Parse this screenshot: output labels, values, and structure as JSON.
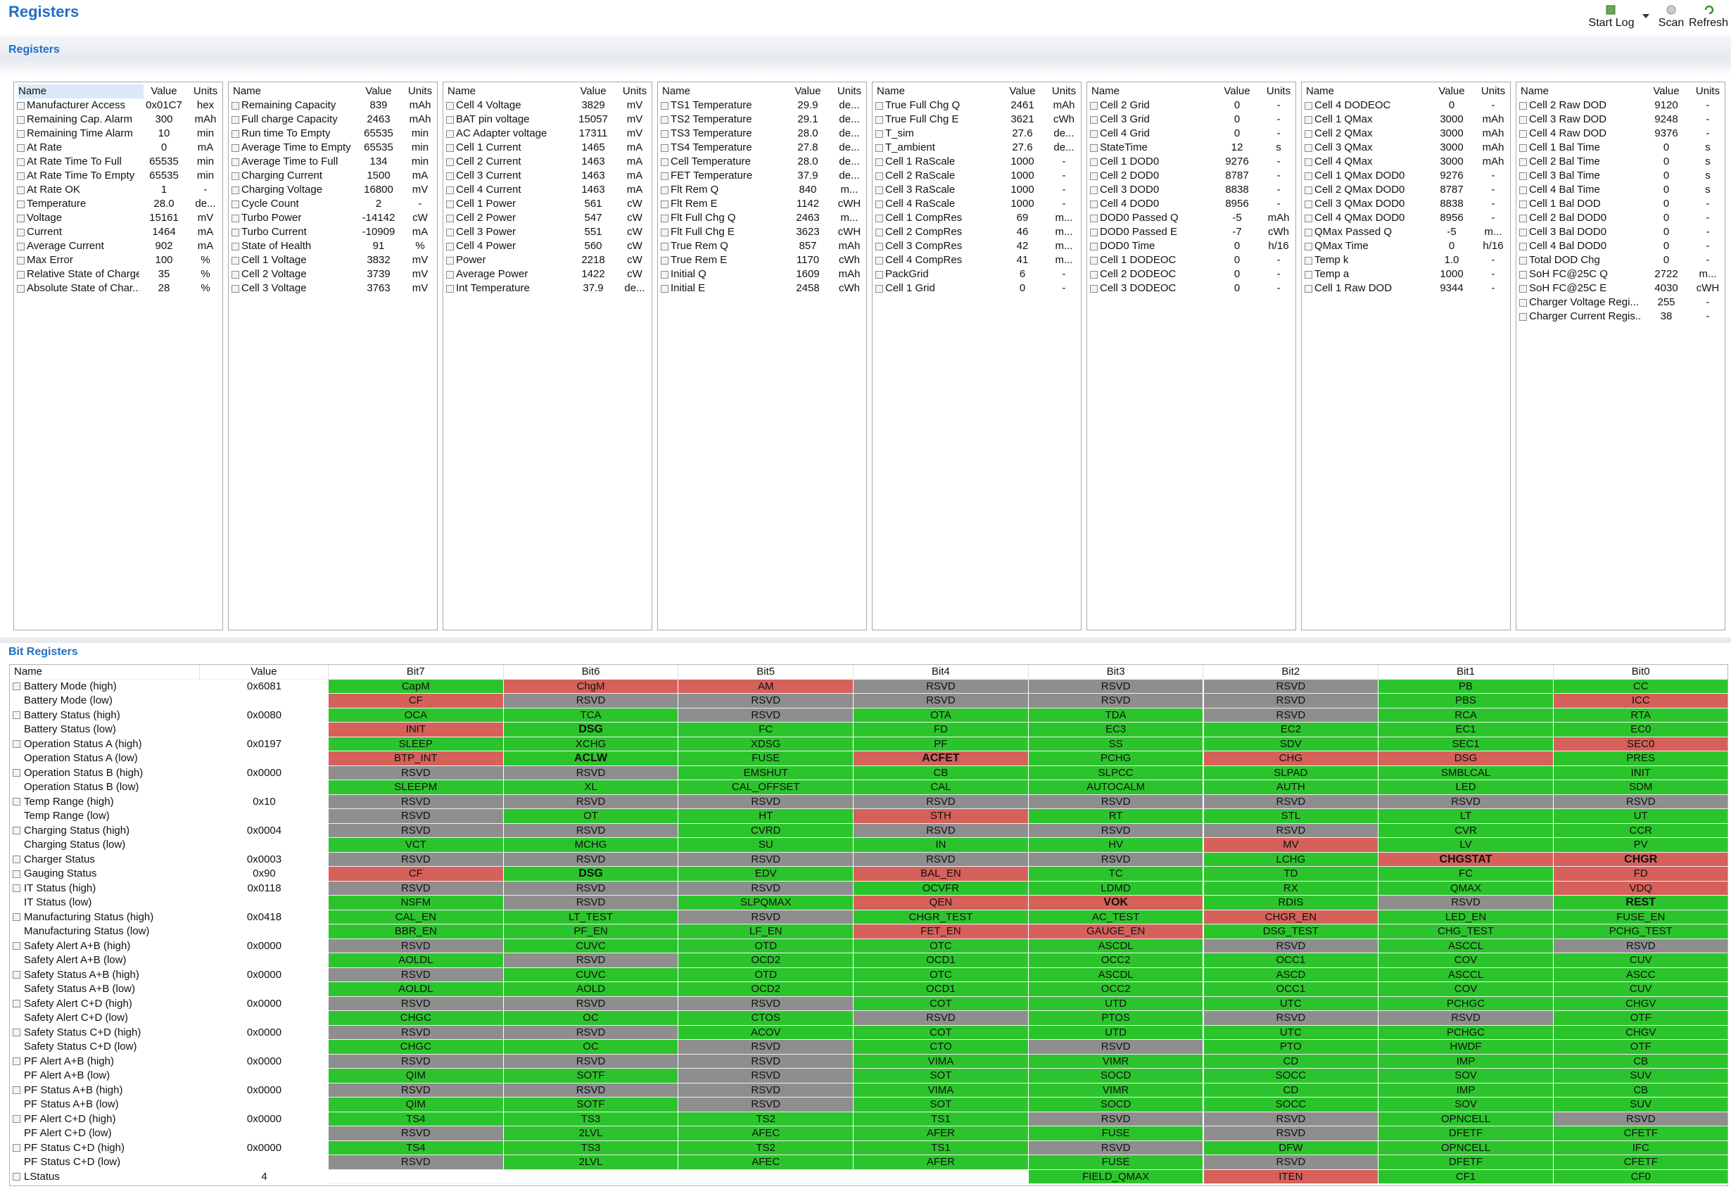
{
  "header": {
    "title": "Registers",
    "toolbar": [
      "Start Log",
      "Scan",
      "Refresh"
    ]
  },
  "registers": {
    "title": "Registers",
    "columns": [
      "Name",
      "Value",
      "Units"
    ],
    "panels": [
      [
        [
          "Manufacturer Access",
          "0x01C7",
          "hex"
        ],
        [
          "Remaining Cap. Alarm",
          "300",
          "mAh"
        ],
        [
          "Remaining Time Alarm",
          "10",
          "min"
        ],
        [
          "At Rate",
          "0",
          "mA"
        ],
        [
          "At Rate Time To Full",
          "65535",
          "min"
        ],
        [
          "At Rate Time To Empty",
          "65535",
          "min"
        ],
        [
          "At Rate OK",
          "1",
          "-"
        ],
        [
          "Temperature",
          "28.0",
          "de..."
        ],
        [
          "Voltage",
          "15161",
          "mV"
        ],
        [
          "Current",
          "1464",
          "mA"
        ],
        [
          "Average Current",
          "902",
          "mA"
        ],
        [
          "Max Error",
          "100",
          "%"
        ],
        [
          "Relative State of Charge",
          "35",
          "%"
        ],
        [
          "Absolute State of Char...",
          "28",
          "%"
        ]
      ],
      [
        [
          "Remaining Capacity",
          "839",
          "mAh"
        ],
        [
          "Full charge Capacity",
          "2463",
          "mAh"
        ],
        [
          "Run time To Empty",
          "65535",
          "min"
        ],
        [
          "Average Time to Empty",
          "65535",
          "min"
        ],
        [
          "Average Time to Full",
          "134",
          "min"
        ],
        [
          "Charging Current",
          "1500",
          "mA"
        ],
        [
          "Charging Voltage",
          "16800",
          "mV"
        ],
        [
          "Cycle Count",
          "2",
          "-"
        ],
        [
          "Turbo Power",
          "-14142",
          "cW"
        ],
        [
          "Turbo Current",
          "-10909",
          "mA"
        ],
        [
          "State of Health",
          "91",
          "%"
        ],
        [
          "Cell 1 Voltage",
          "3832",
          "mV"
        ],
        [
          "Cell 2 Voltage",
          "3739",
          "mV"
        ],
        [
          "Cell 3 Voltage",
          "3763",
          "mV"
        ]
      ],
      [
        [
          "Cell 4 Voltage",
          "3829",
          "mV"
        ],
        [
          "BAT pin voltage",
          "15057",
          "mV"
        ],
        [
          "AC Adapter voltage",
          "17311",
          "mV"
        ],
        [
          "Cell 1 Current",
          "1465",
          "mA"
        ],
        [
          "Cell 2 Current",
          "1463",
          "mA"
        ],
        [
          "Cell 3 Current",
          "1463",
          "mA"
        ],
        [
          "Cell 4 Current",
          "1463",
          "mA"
        ],
        [
          "Cell 1 Power",
          "561",
          "cW"
        ],
        [
          "Cell 2 Power",
          "547",
          "cW"
        ],
        [
          "Cell 3 Power",
          "551",
          "cW"
        ],
        [
          "Cell 4 Power",
          "560",
          "cW"
        ],
        [
          "Power",
          "2218",
          "cW"
        ],
        [
          "Average Power",
          "1422",
          "cW"
        ],
        [
          "Int Temperature",
          "37.9",
          "de..."
        ]
      ],
      [
        [
          "TS1 Temperature",
          "29.9",
          "de..."
        ],
        [
          "TS2 Temperature",
          "29.1",
          "de..."
        ],
        [
          "TS3 Temperature",
          "28.0",
          "de..."
        ],
        [
          "TS4 Temperature",
          "27.8",
          "de..."
        ],
        [
          "Cell Temperature",
          "28.0",
          "de..."
        ],
        [
          "FET Temperature",
          "37.9",
          "de..."
        ],
        [
          "Flt Rem Q",
          "840",
          "m..."
        ],
        [
          "Flt Rem E",
          "1142",
          "cWH"
        ],
        [
          "Flt Full Chg Q",
          "2463",
          "m..."
        ],
        [
          "Flt Full Chg E",
          "3623",
          "cWH"
        ],
        [
          "True Rem Q",
          "857",
          "mAh"
        ],
        [
          "True Rem E",
          "1170",
          "cWh"
        ],
        [
          "Initial Q",
          "1609",
          "mAh"
        ],
        [
          "Initial E",
          "2458",
          "cWh"
        ]
      ],
      [
        [
          "True Full Chg Q",
          "2461",
          "mAh"
        ],
        [
          "True Full Chg E",
          "3621",
          "cWh"
        ],
        [
          "T_sim",
          "27.6",
          "de..."
        ],
        [
          "T_ambient",
          "27.6",
          "de..."
        ],
        [
          "Cell 1 RaScale",
          "1000",
          "-"
        ],
        [
          "Cell 2 RaScale",
          "1000",
          "-"
        ],
        [
          "Cell 3 RaScale",
          "1000",
          "-"
        ],
        [
          "Cell 4 RaScale",
          "1000",
          "-"
        ],
        [
          "Cell 1 CompRes",
          "69",
          "m..."
        ],
        [
          "Cell 2 CompRes",
          "46",
          "m..."
        ],
        [
          "Cell 3 CompRes",
          "42",
          "m..."
        ],
        [
          "Cell 4 CompRes",
          "41",
          "m..."
        ],
        [
          "PackGrid",
          "6",
          "-"
        ],
        [
          "Cell 1 Grid",
          "0",
          "-"
        ]
      ],
      [
        [
          "Cell 2 Grid",
          "0",
          "-"
        ],
        [
          "Cell 3 Grid",
          "0",
          "-"
        ],
        [
          "Cell 4 Grid",
          "0",
          "-"
        ],
        [
          "StateTime",
          "12",
          "s"
        ],
        [
          "Cell 1 DOD0",
          "9276",
          "-"
        ],
        [
          "Cell 2 DOD0",
          "8787",
          "-"
        ],
        [
          "Cell 3 DOD0",
          "8838",
          "-"
        ],
        [
          "Cell 4 DOD0",
          "8956",
          "-"
        ],
        [
          "DOD0 Passed Q",
          "-5",
          "mAh"
        ],
        [
          "DOD0 Passed E",
          "-7",
          "cWh"
        ],
        [
          "DOD0 Time",
          "0",
          "h/16"
        ],
        [
          "Cell 1 DODEOC",
          "0",
          "-"
        ],
        [
          "Cell 2 DODEOC",
          "0",
          "-"
        ],
        [
          "Cell 3 DODEOC",
          "0",
          "-"
        ]
      ],
      [
        [
          "Cell 4 DODEOC",
          "0",
          "-"
        ],
        [
          "Cell 1 QMax",
          "3000",
          "mAh"
        ],
        [
          "Cell 2 QMax",
          "3000",
          "mAh"
        ],
        [
          "Cell 3 QMax",
          "3000",
          "mAh"
        ],
        [
          "Cell 4 QMax",
          "3000",
          "mAh"
        ],
        [
          "Cell 1 QMax DOD0",
          "9276",
          "-"
        ],
        [
          "Cell 2 QMax DOD0",
          "8787",
          "-"
        ],
        [
          "Cell 3 QMax DOD0",
          "8838",
          "-"
        ],
        [
          "Cell 4 QMax DOD0",
          "8956",
          "-"
        ],
        [
          "QMax Passed Q",
          "-5",
          "m..."
        ],
        [
          "QMax Time",
          "0",
          "h/16"
        ],
        [
          "Temp k",
          "1.0",
          "-"
        ],
        [
          "Temp a",
          "1000",
          "-"
        ],
        [
          "Cell 1 Raw DOD",
          "9344",
          "-"
        ]
      ],
      [
        [
          "Cell 2 Raw DOD",
          "9120",
          "-"
        ],
        [
          "Cell 3 Raw DOD",
          "9248",
          "-"
        ],
        [
          "Cell 4 Raw DOD",
          "9376",
          "-"
        ],
        [
          "Cell 1 Bal Time",
          "0",
          "s"
        ],
        [
          "Cell 2 Bal Time",
          "0",
          "s"
        ],
        [
          "Cell 3 Bal Time",
          "0",
          "s"
        ],
        [
          "Cell 4 Bal Time",
          "0",
          "s"
        ],
        [
          "Cell 1 Bal DOD",
          "0",
          "-"
        ],
        [
          "Cell 2 Bal DOD0",
          "0",
          "-"
        ],
        [
          "Cell 3 Bal DOD0",
          "0",
          "-"
        ],
        [
          "Cell 4 Bal DOD0",
          "0",
          "-"
        ],
        [
          "Total DOD Chg",
          "0",
          "-"
        ],
        [
          "SoH FC@25C Q",
          "2722",
          "m..."
        ],
        [
          "SoH FC@25C E",
          "4030",
          "cWH"
        ],
        [
          "Charger Voltage Regi...",
          "255",
          "-"
        ],
        [
          "Charger Current Regis...",
          "38",
          "-"
        ]
      ]
    ]
  },
  "bit_registers": {
    "title": "Bit Registers",
    "columns": [
      "Name",
      "Value",
      "Bit7",
      "Bit6",
      "Bit5",
      "Bit4",
      "Bit3",
      "Bit2",
      "Bit1",
      "Bit0"
    ],
    "palette": {
      "g": "#2cc42c",
      "r": "#d6605a",
      "x": "#8e8e8e"
    },
    "rows": [
      {
        "name": "Battery Mode (high)",
        "value": "0x6081",
        "bits": [
          "CapM",
          "ChgM",
          "AM",
          "RSVD",
          "RSVD",
          "RSVD",
          "PB",
          "CC"
        ],
        "colors": "grrxxxgg"
      },
      {
        "name": "Battery Mode (low)",
        "bits": [
          "CF",
          "RSVD",
          "RSVD",
          "RSVD",
          "RSVD",
          "RSVD",
          "PBS",
          "ICC"
        ],
        "colors": "rxxxxxgr"
      },
      {
        "name": "Battery Status (high)",
        "value": "0x0080",
        "bits": [
          "OCA",
          "TCA",
          "RSVD",
          "OTA",
          "TDA",
          "RSVD",
          "RCA",
          "RTA"
        ],
        "colors": "ggxggxgg"
      },
      {
        "name": "Battery Status (low)",
        "bits": [
          "INIT",
          "DSG",
          "FC",
          "FD",
          "EC3",
          "EC2",
          "EC1",
          "EC0"
        ],
        "colors": "rggggggg",
        "bold": [
          1
        ]
      },
      {
        "name": "Operation Status A (high)",
        "value": "0x0197",
        "bits": [
          "SLEEP",
          "XCHG",
          "XDSG",
          "PF",
          "SS",
          "SDV",
          "SEC1",
          "SEC0"
        ],
        "colors": "gggggggr"
      },
      {
        "name": "Operation Status A (low)",
        "bits": [
          "BTP_INT",
          "ACLW",
          "FUSE",
          "ACFET",
          "PCHG",
          "CHG",
          "DSG",
          "PRES"
        ],
        "colors": "rggrgrrg",
        "bold": [
          1,
          3
        ]
      },
      {
        "name": "Operation Status B (high)",
        "value": "0x0000",
        "bits": [
          "RSVD",
          "RSVD",
          "EMSHUT",
          "CB",
          "SLPCC",
          "SLPAD",
          "SMBLCAL",
          "INIT"
        ],
        "colors": "xxgggggg"
      },
      {
        "name": "Operation Status B (low)",
        "bits": [
          "SLEEPM",
          "XL",
          "CAL_OFFSET",
          "CAL",
          "AUTOCALM",
          "AUTH",
          "LED",
          "SDM"
        ],
        "colors": "gggggggg"
      },
      {
        "name": "Temp Range (high)",
        "value": "0x10",
        "bits": [
          "RSVD",
          "RSVD",
          "RSVD",
          "RSVD",
          "RSVD",
          "RSVD",
          "RSVD",
          "RSVD"
        ],
        "colors": "xxxxxxxx"
      },
      {
        "name": "Temp Range (low)",
        "bits": [
          "RSVD",
          "OT",
          "HT",
          "STH",
          "RT",
          "STL",
          "LT",
          "UT"
        ],
        "colors": "xggrgggg"
      },
      {
        "name": "Charging Status (high)",
        "value": "0x0004",
        "bits": [
          "RSVD",
          "RSVD",
          "CVRD",
          "RSVD",
          "RSVD",
          "RSVD",
          "CVR",
          "CCR"
        ],
        "colors": "xxgxxxgg"
      },
      {
        "name": "Charging Status (low)",
        "bits": [
          "VCT",
          "MCHG",
          "SU",
          "IN",
          "HV",
          "MV",
          "LV",
          "PV"
        ],
        "colors": "gggggrgg"
      },
      {
        "name": "Charger Status",
        "value": "0x0003",
        "bits": [
          "RSVD",
          "RSVD",
          "RSVD",
          "RSVD",
          "RSVD",
          "LCHG",
          "CHGSTAT",
          "CHGR"
        ],
        "colors": "xxxxxgrr",
        "bold": [
          6,
          7
        ]
      },
      {
        "name": "Gauging Status",
        "value": "0x90",
        "bits": [
          "CF",
          "DSG",
          "EDV",
          "BAL_EN",
          "TC",
          "TD",
          "FC",
          "FD"
        ],
        "colors": "rggrgggr",
        "bold": [
          1
        ]
      },
      {
        "name": "IT Status (high)",
        "value": "0x0118",
        "bits": [
          "RSVD",
          "RSVD",
          "RSVD",
          "OCVFR",
          "LDMD",
          "RX",
          "QMAX",
          "VDQ"
        ],
        "colors": "xxxggggr"
      },
      {
        "name": "IT Status (low)",
        "bits": [
          "NSFM",
          "RSVD",
          "SLPQMAX",
          "QEN",
          "VOK",
          "RDIS",
          "RSVD",
          "REST"
        ],
        "colors": "gxgrrgxg",
        "bold": [
          4,
          7
        ]
      },
      {
        "name": "Manufacturing Status (high)",
        "value": "0x0418",
        "bits": [
          "CAL_EN",
          "LT_TEST",
          "RSVD",
          "CHGR_TEST",
          "AC_TEST",
          "CHGR_EN",
          "LED_EN",
          "FUSE_EN"
        ],
        "colors": "ggxggrgg"
      },
      {
        "name": "Manufacturing Status (low)",
        "bits": [
          "BBR_EN",
          "PF_EN",
          "LF_EN",
          "FET_EN",
          "GAUGE_EN",
          "DSG_TEST",
          "CHG_TEST",
          "PCHG_TEST"
        ],
        "colors": "gggrrggg"
      },
      {
        "name": "Safety Alert A+B (high)",
        "value": "0x0000",
        "bits": [
          "RSVD",
          "CUVC",
          "OTD",
          "OTC",
          "ASCDL",
          "RSVD",
          "ASCCL",
          "RSVD"
        ],
        "colors": "xggggxgx"
      },
      {
        "name": "Safety Alert A+B (low)",
        "bits": [
          "AOLDL",
          "RSVD",
          "OCD2",
          "OCD1",
          "OCC2",
          "OCC1",
          "COV",
          "CUV"
        ],
        "colors": "gxgggggg"
      },
      {
        "name": "Safety Status A+B (high)",
        "value": "0x0000",
        "bits": [
          "RSVD",
          "CUVC",
          "OTD",
          "OTC",
          "ASCDL",
          "ASCD",
          "ASCCL",
          "ASCC"
        ],
        "colors": "xggggggg"
      },
      {
        "name": "Safety Status A+B (low)",
        "bits": [
          "AOLDL",
          "AOLD",
          "OCD2",
          "OCD1",
          "OCC2",
          "OCC1",
          "COV",
          "CUV"
        ],
        "colors": "gggggggg"
      },
      {
        "name": "Safety Alert C+D (high)",
        "value": "0x0000",
        "bits": [
          "RSVD",
          "RSVD",
          "RSVD",
          "COT",
          "UTD",
          "UTC",
          "PCHGC",
          "CHGV"
        ],
        "colors": "xxxggggg"
      },
      {
        "name": "Safety Alert C+D (low)",
        "bits": [
          "CHGC",
          "OC",
          "CTOS",
          "RSVD",
          "PTOS",
          "RSVD",
          "RSVD",
          "OTF"
        ],
        "colors": "gggxgxxg"
      },
      {
        "name": "Safety Status C+D (high)",
        "value": "0x0000",
        "bits": [
          "RSVD",
          "RSVD",
          "ACOV",
          "COT",
          "UTD",
          "UTC",
          "PCHGC",
          "CHGV"
        ],
        "colors": "xxgggggg"
      },
      {
        "name": "Safety Status C+D (low)",
        "bits": [
          "CHGC",
          "OC",
          "RSVD",
          "CTO",
          "RSVD",
          "PTO",
          "HWDF",
          "OTF"
        ],
        "colors": "ggxgxggg"
      },
      {
        "name": "PF Alert A+B (high)",
        "value": "0x0000",
        "bits": [
          "RSVD",
          "RSVD",
          "RSVD",
          "VIMA",
          "VIMR",
          "CD",
          "IMP",
          "CB"
        ],
        "colors": "xxxggggg"
      },
      {
        "name": "PF Alert A+B (low)",
        "bits": [
          "QIM",
          "SOTF",
          "RSVD",
          "SOT",
          "SOCD",
          "SOCC",
          "SOV",
          "SUV"
        ],
        "colors": "ggxggggg"
      },
      {
        "name": "PF Status A+B (high)",
        "value": "0x0000",
        "bits": [
          "RSVD",
          "RSVD",
          "RSVD",
          "VIMA",
          "VIMR",
          "CD",
          "IMP",
          "CB"
        ],
        "colors": "xxxggggg"
      },
      {
        "name": "PF Status A+B (low)",
        "bits": [
          "QIM",
          "SOTF",
          "RSVD",
          "SOT",
          "SOCD",
          "SOCC",
          "SOV",
          "SUV"
        ],
        "colors": "ggxggggg"
      },
      {
        "name": "PF Alert C+D (high)",
        "value": "0x0000",
        "bits": [
          "TS4",
          "TS3",
          "TS2",
          "TS1",
          "RSVD",
          "RSVD",
          "OPNCELL",
          "RSVD"
        ],
        "colors": "ggggxxgx"
      },
      {
        "name": "PF Alert C+D (low)",
        "bits": [
          "RSVD",
          "2LVL",
          "AFEC",
          "AFER",
          "FUSE",
          "RSVD",
          "DFETF",
          "CFETF"
        ],
        "colors": "xggggxgg"
      },
      {
        "name": "PF Status C+D (high)",
        "value": "0x0000",
        "bits": [
          "TS4",
          "TS3",
          "TS2",
          "TS1",
          "RSVD",
          "DFW",
          "OPNCELL",
          "IFC"
        ],
        "colors": "ggggxggg"
      },
      {
        "name": "PF Status C+D (low)",
        "bits": [
          "RSVD",
          "2LVL",
          "AFEC",
          "AFER",
          "FUSE",
          "RSVD",
          "DFETF",
          "CFETF"
        ],
        "colors": "xggggxgg"
      },
      {
        "name": "LStatus",
        "value": "4",
        "bits": [
          null,
          null,
          null,
          null,
          "FIELD_QMAX",
          "ITEN",
          "CF1",
          "CF0"
        ],
        "colors": "nnnngrgg"
      }
    ]
  }
}
